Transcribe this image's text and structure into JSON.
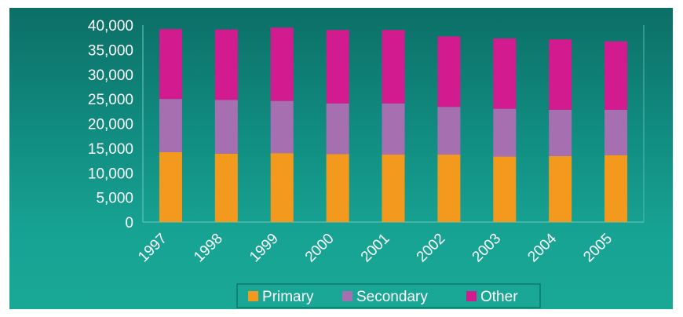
{
  "chart_data": {
    "type": "bar",
    "stacked": true,
    "categories": [
      "1997",
      "1998",
      "1999",
      "2000",
      "2001",
      "2002",
      "2003",
      "2004",
      "2005"
    ],
    "series": [
      {
        "name": "Primary",
        "color": "#f39a1e",
        "values": [
          14200,
          13900,
          14000,
          13800,
          13700,
          13700,
          13300,
          13400,
          13600
        ]
      },
      {
        "name": "Secondary",
        "color": "#a66fb0",
        "values": [
          10800,
          10900,
          10600,
          10300,
          10400,
          9700,
          9700,
          9400,
          9200
        ]
      },
      {
        "name": "Other",
        "color": "#d21b8e",
        "values": [
          14200,
          14300,
          14900,
          14900,
          14900,
          14300,
          14300,
          14300,
          13900
        ]
      }
    ],
    "ylim": [
      0,
      40000
    ],
    "yticks": [
      "0",
      "5,000",
      "10,000",
      "15,000",
      "20,000",
      "25,000",
      "30,000",
      "35,000",
      "40,000"
    ],
    "ytick_values": [
      0,
      5000,
      10000,
      15000,
      20000,
      25000,
      30000,
      35000,
      40000
    ],
    "grid": false,
    "legend": "bottom",
    "title": "",
    "xlabel": "",
    "ylabel": ""
  }
}
